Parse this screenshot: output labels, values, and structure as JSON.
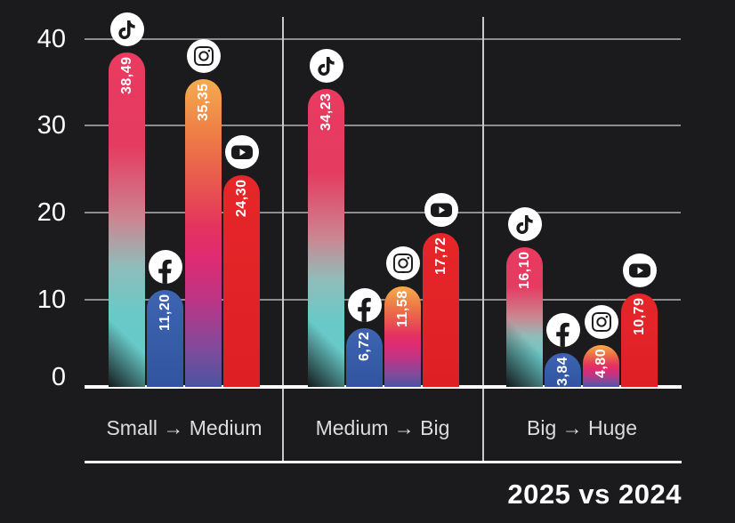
{
  "title": "2025 vs 2024",
  "y_axis": {
    "ticks": [
      "40",
      "30",
      "20",
      "10",
      "0"
    ]
  },
  "chart_data": {
    "type": "bar",
    "title": "2025 vs 2024",
    "categories": [
      "Small → Medium",
      "Medium → Big",
      "Big → Huge"
    ],
    "series": [
      {
        "name": "TikTok",
        "icon": "tiktok-icon",
        "values": [
          38.49,
          34.23,
          16.1
        ],
        "labels": [
          "38,49",
          "34,23",
          "16,10"
        ]
      },
      {
        "name": "Facebook",
        "icon": "facebook-icon",
        "values": [
          11.2,
          6.72,
          3.84
        ],
        "labels": [
          "11,20",
          "6,72",
          "3,84"
        ]
      },
      {
        "name": "Instagram",
        "icon": "instagram-icon",
        "values": [
          35.35,
          11.58,
          4.8
        ],
        "labels": [
          "35,35",
          "11,58",
          "4,80"
        ]
      },
      {
        "name": "YouTube",
        "icon": "youtube-icon",
        "values": [
          24.3,
          17.72,
          10.79
        ],
        "labels": [
          "24,30",
          "17,72",
          "10,79"
        ]
      }
    ],
    "ylim": [
      0,
      40
    ],
    "yticks": [
      0,
      10,
      20,
      30,
      40
    ],
    "grid": true,
    "decimal_separator": ",",
    "legend": "platform icons shown above each bar"
  },
  "colors": {
    "background": "#1b1b1d",
    "grid": "#8d8d8d",
    "separator": "#c9c9c9",
    "axis_line": "#ffffff",
    "tick_label": "#ffffff",
    "category_label": "#dcdcdc",
    "bar_value_label": "#ffffff",
    "icon_badge_bg": "#ffffff",
    "icon_glyph": "#1a1a1c",
    "bar_gradients": {
      "TikTok": [
        [
          "#ea3a60",
          0
        ],
        [
          "#e53b61",
          28
        ],
        [
          "#cb8691",
          50
        ],
        [
          "#8fbdba",
          64
        ],
        [
          "#69c9c7",
          78
        ],
        [
          "#66cbca",
          100
        ]
      ],
      "Facebook": [
        [
          "#3d64b2",
          0
        ],
        [
          "#31549f",
          100
        ]
      ],
      "Instagram": [
        [
          "#f5ac4e",
          0
        ],
        [
          "#ee7d46",
          18
        ],
        [
          "#e8544f",
          35
        ],
        [
          "#e4335f",
          48
        ],
        [
          "#df2b72",
          58
        ],
        [
          "#bb3585",
          72
        ],
        [
          "#7f4b9d",
          88
        ],
        [
          "#4b549e",
          100
        ]
      ],
      "YouTube": [
        [
          "#e62629",
          0
        ],
        [
          "#de2025",
          100
        ]
      ]
    },
    "tiktok_corner_shadow": "rgba(16,16,18,0.95)"
  }
}
